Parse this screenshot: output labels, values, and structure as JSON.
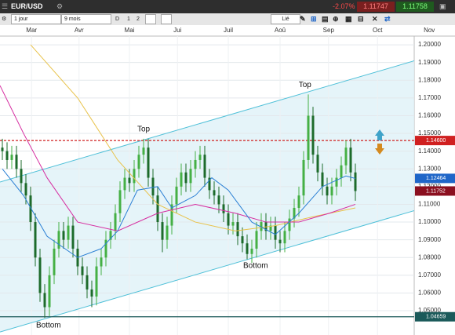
{
  "toolbar": {
    "symbol": "EUR/USD",
    "change": "-2.07%",
    "bid": "1.11747",
    "ask": "1.11758",
    "interval": "1 jour",
    "range": "9 mois",
    "buttons": [
      "D",
      "1",
      "2"
    ],
    "link": "Lié"
  },
  "chart_data": {
    "type": "candlestick",
    "xlim": [
      -0.5,
      87.5
    ],
    "xticks": [
      {
        "value": 6.2,
        "label": "Mar"
      },
      {
        "value": 16.3,
        "label": "Avr"
      },
      {
        "value": 27,
        "label": "Mai"
      },
      {
        "value": 37.2,
        "label": "Jui"
      },
      {
        "value": 48,
        "label": "Juil"
      },
      {
        "value": 59,
        "label": "Aoû"
      },
      {
        "value": 69.3,
        "label": "Sep"
      },
      {
        "value": 79.7,
        "label": "Oct"
      },
      {
        "value": 90.7,
        "label": "Nov"
      }
    ],
    "ylim": [
      1.0363,
      1.2049
    ],
    "yticks": [
      {
        "value": 1.05,
        "label": "1.05000"
      },
      {
        "value": 1.06,
        "label": "1.06000"
      },
      {
        "value": 1.07,
        "label": "1.07000"
      },
      {
        "value": 1.08,
        "label": "1.08000"
      },
      {
        "value": 1.09,
        "label": "1.09000"
      },
      {
        "value": 1.1,
        "label": "1.10000"
      },
      {
        "value": 1.11,
        "label": "1.11000"
      },
      {
        "value": 1.12,
        "label": "1.12000"
      },
      {
        "value": 1.13,
        "label": "1.13000"
      },
      {
        "value": 1.14,
        "label": "1.14000"
      },
      {
        "value": 1.15,
        "label": "1.15000"
      },
      {
        "value": 1.16,
        "label": "1.16000"
      },
      {
        "value": 1.17,
        "label": "1.17000"
      },
      {
        "value": 1.18,
        "label": "1.18000"
      },
      {
        "value": 1.19,
        "label": "1.19000"
      },
      {
        "value": 1.2,
        "label": "1.20000"
      }
    ],
    "grid": true,
    "up_color": "#45b045",
    "down_color": "#1d6b2b",
    "open": [
      1.142,
      1.14,
      1.135,
      1.138,
      1.13,
      1.122,
      1.115,
      1.1,
      1.08,
      1.06,
      1.052,
      1.07,
      1.085,
      1.095,
      1.09,
      1.098,
      1.085,
      1.075,
      1.07,
      1.062,
      1.058,
      1.075,
      1.08,
      1.09,
      1.095,
      1.105,
      1.118,
      1.125,
      1.122,
      1.13,
      1.138,
      1.142,
      1.125,
      1.115,
      1.1,
      1.09,
      1.098,
      1.11,
      1.12,
      1.128,
      1.122,
      1.13,
      1.135,
      1.138,
      1.125,
      1.118,
      1.115,
      1.11,
      1.105,
      1.098,
      1.1,
      1.092,
      1.088,
      1.082,
      1.085,
      1.095,
      1.1,
      1.095,
      1.098,
      1.09,
      1.088,
      1.095,
      1.102,
      1.108,
      1.115,
      1.135,
      1.16,
      1.138,
      1.128,
      1.12,
      1.115,
      1.12,
      1.125,
      1.132,
      1.142,
      1.128
    ],
    "high": [
      1.147,
      1.145,
      1.143,
      1.143,
      1.135,
      1.127,
      1.12,
      1.105,
      1.085,
      1.065,
      1.075,
      1.09,
      1.1,
      1.1,
      1.103,
      1.103,
      1.09,
      1.08,
      1.075,
      1.067,
      1.08,
      1.085,
      1.095,
      1.1,
      1.11,
      1.123,
      1.13,
      1.13,
      1.135,
      1.143,
      1.147,
      1.147,
      1.13,
      1.12,
      1.105,
      1.103,
      1.115,
      1.125,
      1.133,
      1.133,
      1.135,
      1.14,
      1.143,
      1.143,
      1.13,
      1.123,
      1.12,
      1.115,
      1.11,
      1.105,
      1.105,
      1.097,
      1.093,
      1.09,
      1.1,
      1.105,
      1.105,
      1.103,
      1.103,
      1.095,
      1.1,
      1.107,
      1.113,
      1.12,
      1.14,
      1.172,
      1.165,
      1.143,
      1.133,
      1.125,
      1.125,
      1.13,
      1.137,
      1.146,
      1.147,
      1.133
    ],
    "low": [
      1.135,
      1.13,
      1.13,
      1.125,
      1.117,
      1.11,
      1.095,
      1.075,
      1.055,
      1.046,
      1.047,
      1.065,
      1.08,
      1.085,
      1.085,
      1.08,
      1.07,
      1.065,
      1.057,
      1.052,
      1.053,
      1.07,
      1.075,
      1.085,
      1.09,
      1.1,
      1.113,
      1.117,
      1.117,
      1.125,
      1.133,
      1.12,
      1.11,
      1.095,
      1.083,
      1.085,
      1.093,
      1.105,
      1.115,
      1.117,
      1.117,
      1.125,
      1.13,
      1.12,
      1.113,
      1.11,
      1.105,
      1.1,
      1.093,
      1.093,
      1.087,
      1.083,
      1.079,
      1.077,
      1.08,
      1.09,
      1.09,
      1.09,
      1.085,
      1.083,
      1.083,
      1.09,
      1.097,
      1.103,
      1.11,
      1.13,
      1.133,
      1.123,
      1.115,
      1.11,
      1.11,
      1.115,
      1.12,
      1.127,
      1.123,
      1.112
    ],
    "close": [
      1.14,
      1.135,
      1.138,
      1.13,
      1.122,
      1.115,
      1.1,
      1.08,
      1.06,
      1.052,
      1.07,
      1.085,
      1.095,
      1.09,
      1.098,
      1.085,
      1.075,
      1.07,
      1.062,
      1.058,
      1.075,
      1.08,
      1.09,
      1.095,
      1.105,
      1.118,
      1.125,
      1.122,
      1.13,
      1.138,
      1.142,
      1.125,
      1.115,
      1.1,
      1.09,
      1.098,
      1.11,
      1.12,
      1.128,
      1.122,
      1.13,
      1.135,
      1.138,
      1.125,
      1.118,
      1.115,
      1.11,
      1.105,
      1.098,
      1.1,
      1.092,
      1.088,
      1.082,
      1.085,
      1.095,
      1.1,
      1.095,
      1.098,
      1.09,
      1.088,
      1.095,
      1.102,
      1.108,
      1.115,
      1.135,
      1.16,
      1.138,
      1.128,
      1.12,
      1.115,
      1.12,
      1.125,
      1.132,
      1.142,
      1.128,
      1.1175
    ],
    "indicators": [
      {
        "color": "#e8c24a",
        "x": [
          6,
          16,
          24.5,
          33,
          41,
          49.5,
          58,
          66,
          75
        ],
        "values": [
          1.2,
          1.17,
          1.135,
          1.11,
          1.1,
          1.095,
          1.098,
          1.103,
          1.108
        ]
      },
      {
        "color": "#d62ca0",
        "x": [
          -0.5,
          4.5,
          9.5,
          16,
          24.5,
          33,
          41,
          49.5,
          56,
          63,
          69.5,
          75
        ],
        "values": [
          1.177,
          1.15,
          1.125,
          1.1,
          1.095,
          1.105,
          1.11,
          1.105,
          1.1,
          1.1,
          1.105,
          1.11
        ]
      },
      {
        "color": "#2a7fd4",
        "x": [
          0,
          4.5,
          9.5,
          16,
          21,
          24.5,
          28.7,
          33,
          36,
          41,
          44.5,
          48,
          53,
          58,
          63,
          68,
          73,
          75
        ],
        "values": [
          1.13,
          1.115,
          1.092,
          1.08,
          1.085,
          1.095,
          1.118,
          1.12,
          1.108,
          1.115,
          1.125,
          1.118,
          1.1,
          1.093,
          1.105,
          1.12,
          1.126,
          1.1246
        ]
      }
    ],
    "channel": {
      "x": [
        -0.5,
        89.5
      ],
      "upper": [
        1.1226,
        1.1925
      ],
      "lower": [
        1.038,
        1.108
      ],
      "color": "#4fc0d8"
    },
    "levels": [
      {
        "value": 1.146,
        "color": "#d02020"
      },
      {
        "value": 1.04659,
        "color": "#1b5a5a"
      }
    ],
    "price_tags": [
      {
        "value": 1.146,
        "label": "1.14600",
        "color": "#d02020"
      },
      {
        "value": 1.12464,
        "label": "1.12464",
        "color": "#1f66c8"
      },
      {
        "value": 1.11752,
        "label": "1.11752",
        "color": "#8b0f1f"
      },
      {
        "value": 1.04659,
        "label": "1.04659",
        "color": "#1b5a5a"
      }
    ],
    "annotations": [
      {
        "text": "Top",
        "x": 30,
        "y": 1.1522
      },
      {
        "text": "Top",
        "x": 64.3,
        "y": 1.1774
      },
      {
        "text": "Bottom",
        "x": 53.8,
        "y": 1.0752
      },
      {
        "text": "Bottom",
        "x": 9.8,
        "y": 1.0416
      }
    ]
  }
}
